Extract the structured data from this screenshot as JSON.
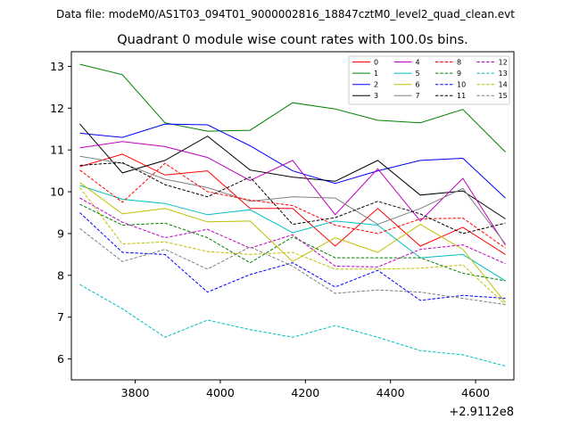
{
  "chart_data": {
    "type": "line",
    "suptitle": "Data file: modeM0/AS1T03_094T01_9000002816_18847cztM0_level2_quad_clean.evt",
    "title": "Quadrant 0 module wise count rates with 100.0s bins.",
    "xlabel": "",
    "ylabel": "",
    "x_offset_label": "+2.9112e8",
    "x": [
      3670,
      3770,
      3870,
      3970,
      4070,
      4170,
      4270,
      4370,
      4470,
      4570,
      4670
    ],
    "xlim": [
      3650,
      4690
    ],
    "ylim": [
      5.5,
      13.35
    ],
    "x_ticks": [
      3800,
      4000,
      4200,
      4400,
      4600
    ],
    "y_ticks": [
      6,
      7,
      8,
      9,
      10,
      11,
      12,
      13
    ],
    "grid": false,
    "legend_position": "top-right",
    "legend_columns": 4,
    "series": [
      {
        "name": "0",
        "color": "#ff0000",
        "dash": "solid",
        "values": [
          10.6,
          10.9,
          10.4,
          10.5,
          9.6,
          9.6,
          8.7,
          9.6,
          8.7,
          9.15,
          8.5
        ]
      },
      {
        "name": "1",
        "color": "#008000",
        "dash": "solid",
        "values": [
          13.05,
          12.8,
          11.65,
          11.45,
          11.47,
          12.13,
          11.98,
          11.71,
          11.65,
          11.97,
          10.95
        ]
      },
      {
        "name": "2",
        "color": "#0000ff",
        "dash": "solid",
        "values": [
          11.4,
          11.3,
          11.62,
          11.6,
          11.1,
          10.5,
          10.2,
          10.5,
          10.75,
          10.8,
          9.85
        ]
      },
      {
        "name": "3",
        "color": "#000000",
        "dash": "solid",
        "values": [
          11.62,
          10.45,
          10.75,
          11.33,
          10.52,
          10.35,
          10.25,
          10.75,
          9.92,
          10.02,
          9.35
        ]
      },
      {
        "name": "4",
        "color": "#bf00bf",
        "dash": "solid",
        "values": [
          11.05,
          11.2,
          11.08,
          10.82,
          10.27,
          10.75,
          9.45,
          10.55,
          9.3,
          10.32,
          8.72
        ]
      },
      {
        "name": "5",
        "color": "#00bfbf",
        "dash": "solid",
        "values": [
          10.15,
          9.82,
          9.72,
          9.45,
          9.57,
          9.02,
          9.3,
          9.2,
          8.42,
          8.5,
          7.87
        ]
      },
      {
        "name": "6",
        "color": "#bfbf00",
        "dash": "solid",
        "values": [
          10.22,
          9.47,
          9.6,
          9.28,
          9.3,
          8.33,
          8.9,
          8.55,
          9.22,
          8.62,
          7.35
        ]
      },
      {
        "name": "7",
        "color": "#808080",
        "dash": "solid",
        "values": [
          10.85,
          10.68,
          10.3,
          10.1,
          9.77,
          9.88,
          9.85,
          9.22,
          9.6,
          10.08,
          8.75
        ]
      },
      {
        "name": "8",
        "color": "#ff0000",
        "dash": "dashed",
        "values": [
          10.52,
          9.75,
          10.68,
          10.0,
          9.8,
          9.67,
          9.2,
          9.0,
          9.35,
          9.37,
          8.65
        ]
      },
      {
        "name": "9",
        "color": "#008000",
        "dash": "dashed",
        "values": [
          9.7,
          9.2,
          9.25,
          8.9,
          8.3,
          8.92,
          8.42,
          8.42,
          8.42,
          8.05,
          7.87
        ]
      },
      {
        "name": "10",
        "color": "#0000ff",
        "dash": "dashed",
        "values": [
          9.5,
          8.55,
          8.5,
          7.6,
          8.02,
          8.3,
          7.72,
          8.12,
          7.4,
          7.52,
          7.45
        ]
      },
      {
        "name": "11",
        "color": "#000000",
        "dash": "dashed",
        "values": [
          10.63,
          10.7,
          10.17,
          9.88,
          10.35,
          9.22,
          9.38,
          9.77,
          9.47,
          9.0,
          9.25
        ]
      },
      {
        "name": "12",
        "color": "#bf00bf",
        "dash": "dashed",
        "values": [
          9.85,
          9.27,
          8.9,
          9.1,
          8.65,
          8.97,
          8.22,
          8.2,
          8.62,
          8.73,
          8.28
        ]
      },
      {
        "name": "13",
        "color": "#00bfbf",
        "dash": "dashed",
        "values": [
          7.78,
          7.2,
          6.52,
          6.93,
          6.7,
          6.52,
          6.8,
          6.52,
          6.2,
          6.1,
          5.83
        ]
      },
      {
        "name": "14",
        "color": "#bfbf00",
        "dash": "dashed",
        "values": [
          10.1,
          8.75,
          8.8,
          8.57,
          8.5,
          8.55,
          8.15,
          8.15,
          8.17,
          8.25,
          7.3
        ]
      },
      {
        "name": "15",
        "color": "#808080",
        "dash": "dashed",
        "values": [
          9.12,
          8.33,
          8.62,
          8.15,
          8.68,
          8.22,
          7.57,
          7.65,
          7.6,
          7.45,
          7.3
        ]
      }
    ]
  }
}
